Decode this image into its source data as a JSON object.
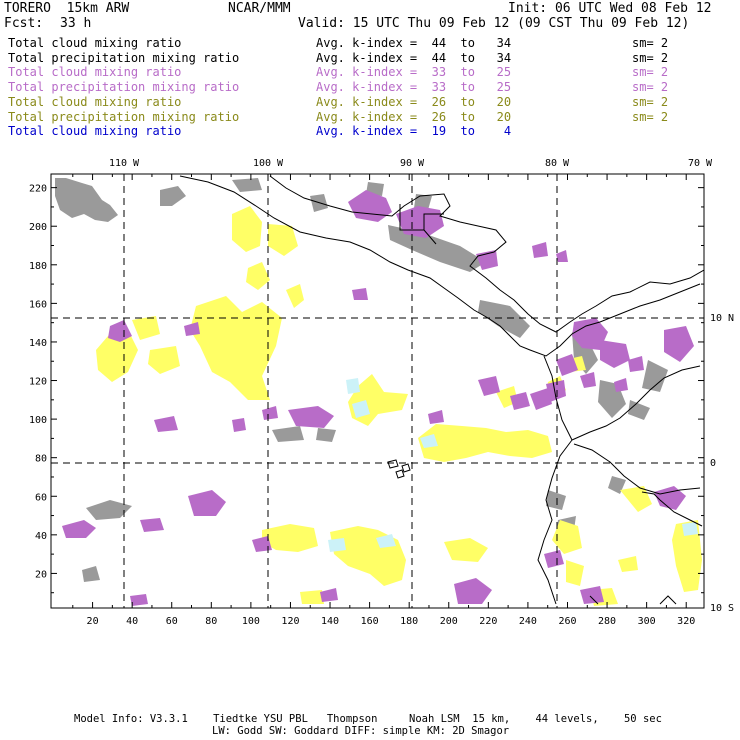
{
  "header": {
    "model": "TORERO  15km ARW",
    "institution": "NCAR/MMM",
    "init": "Init: 06 UTC Wed 08 Feb 12",
    "fcst_label": "Fcst:",
    "fcst_value": "33 h",
    "valid": "Valid: 15 UTC Thu 09 Feb 12 (09 CST Thu 09 Feb 12)"
  },
  "legend": [
    {
      "field": "Total cloud mixing ratio",
      "kindex": "Avg. k-index =  44  to   34",
      "sm": "sm= 2",
      "color": "#000000"
    },
    {
      "field": "Total precipitation mixing ratio",
      "kindex": "Avg. k-index =  44  to   34",
      "sm": "sm= 2",
      "color": "#000000"
    },
    {
      "field": "Total cloud mixing ratio",
      "kindex": "Avg. k-index =  33  to   25",
      "sm": "sm= 2",
      "color": "#b86cc8"
    },
    {
      "field": "Total precipitation mixing ratio",
      "kindex": "Avg. k-index =  33  to   25",
      "sm": "sm= 2",
      "color": "#b86cc8"
    },
    {
      "field": "Total cloud mixing ratio",
      "kindex": "Avg. k-index =  26  to   20",
      "sm": "sm= 2",
      "color": "#8a8a1a"
    },
    {
      "field": "Total precipitation mixing ratio",
      "kindex": "Avg. k-index =  26  to   20",
      "sm": "sm= 2",
      "color": "#8a8a1a"
    },
    {
      "field": "Total cloud mixing ratio",
      "kindex": "Avg. k-index =  19  to    4",
      "sm": "",
      "color": "#0000cc"
    }
  ],
  "map": {
    "lon_labels": [
      "110 W",
      "100 W",
      "90 W",
      "80 W",
      "70 W"
    ],
    "lat_labels": [
      "10 N",
      "0",
      "10 S"
    ],
    "y_ticks": [
      "20",
      "40",
      "60",
      "80",
      "100",
      "120",
      "140",
      "160",
      "180",
      "200",
      "220"
    ],
    "x_ticks": [
      "20",
      "40",
      "60",
      "80",
      "100",
      "120",
      "140",
      "160",
      "180",
      "200",
      "220",
      "240",
      "260",
      "280",
      "300",
      "320"
    ],
    "colors": {
      "gray": "#9a9a9a",
      "purple": "#b86cc8",
      "yellow": "#ffff66",
      "cyan": "#ccf2f8",
      "coast": "#000000"
    }
  },
  "footer": {
    "line1": "Model Info: V3.3.1    Tiedtke YSU PBL   Thompson     Noah LSM  15 km,    44 levels,    50 sec",
    "line2": "LW: Godd SW: Goddard DIFF: simple KM: 2D Smagor"
  }
}
